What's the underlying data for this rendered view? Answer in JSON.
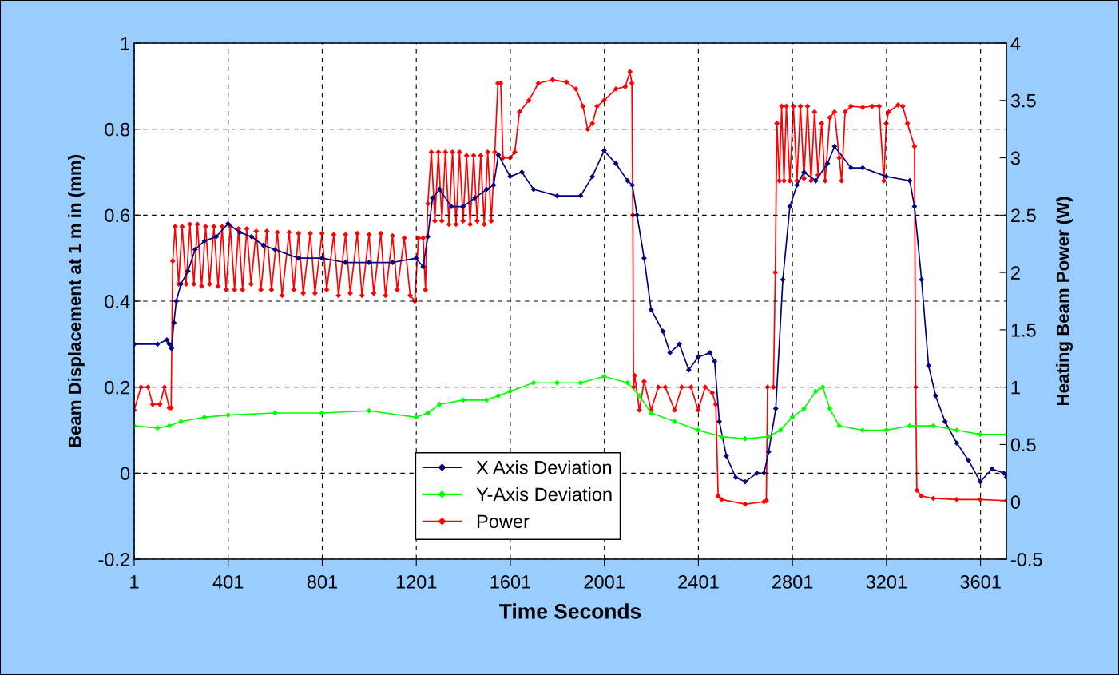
{
  "chart_data": {
    "type": "line",
    "xlabel": "Time Seconds",
    "ylabel": "Beam Displacement at 1 m in (mm)",
    "y2label": "Heating Beam Power (W)",
    "xlim": [
      1,
      3711
    ],
    "xticks": [
      1,
      401,
      801,
      1201,
      1601,
      2001,
      2401,
      2801,
      3201,
      3601
    ],
    "ylim": [
      -0.2,
      1
    ],
    "yticks": [
      -0.2,
      0,
      0.2,
      0.4,
      0.6,
      0.8,
      1
    ],
    "y2lim": [
      -0.5,
      4
    ],
    "y2ticks": [
      -0.5,
      0,
      0.5,
      1,
      1.5,
      2,
      2.5,
      3,
      3.5,
      4
    ],
    "grid": true,
    "legend": "bottom",
    "marker": "diamond",
    "line_style": "solid",
    "series": [
      {
        "name": "X Axis Deviation",
        "color": "#000080",
        "x": [
          1,
          100,
          140,
          150,
          160,
          170,
          180,
          200,
          230,
          260,
          300,
          350,
          400,
          450,
          500,
          550,
          600,
          700,
          800,
          900,
          1000,
          1100,
          1200,
          1230,
          1250,
          1270,
          1300,
          1350,
          1400,
          1450,
          1500,
          1530,
          1550,
          1600,
          1650,
          1700,
          1800,
          1900,
          1950,
          2000,
          2050,
          2100,
          2120,
          2140,
          2170,
          2200,
          2250,
          2280,
          2320,
          2360,
          2400,
          2450,
          2470,
          2490,
          2520,
          2560,
          2600,
          2650,
          2680,
          2700,
          2730,
          2760,
          2790,
          2820,
          2850,
          2900,
          2950,
          2980,
          3050,
          3100,
          3200,
          3300,
          3320,
          3350,
          3380,
          3410,
          3450,
          3500,
          3550,
          3600,
          3650,
          3700,
          3711
        ],
        "values": [
          0.3,
          0.3,
          0.31,
          0.3,
          0.29,
          0.35,
          0.4,
          0.44,
          0.47,
          0.52,
          0.54,
          0.55,
          0.58,
          0.56,
          0.55,
          0.53,
          0.52,
          0.5,
          0.5,
          0.49,
          0.49,
          0.49,
          0.5,
          0.48,
          0.55,
          0.64,
          0.66,
          0.62,
          0.62,
          0.64,
          0.66,
          0.67,
          0.74,
          0.69,
          0.7,
          0.66,
          0.645,
          0.645,
          0.69,
          0.75,
          0.72,
          0.68,
          0.67,
          0.6,
          0.5,
          0.38,
          0.33,
          0.28,
          0.3,
          0.24,
          0.27,
          0.28,
          0.26,
          0.12,
          0.04,
          -0.01,
          -0.02,
          0.0,
          0.0,
          0.05,
          0.15,
          0.45,
          0.62,
          0.67,
          0.7,
          0.68,
          0.72,
          0.76,
          0.71,
          0.71,
          0.69,
          0.68,
          0.62,
          0.45,
          0.25,
          0.18,
          0.12,
          0.07,
          0.03,
          -0.02,
          0.01,
          0.0,
          -0.01
        ]
      },
      {
        "name": "Y-Axis Deviation",
        "color": "#00ff00",
        "x": [
          1,
          100,
          150,
          200,
          300,
          400,
          600,
          800,
          1000,
          1200,
          1250,
          1300,
          1400,
          1500,
          1550,
          1600,
          1700,
          1800,
          1900,
          2000,
          2100,
          2150,
          2200,
          2300,
          2400,
          2500,
          2600,
          2700,
          2750,
          2800,
          2850,
          2900,
          2930,
          2960,
          3000,
          3100,
          3200,
          3300,
          3400,
          3500,
          3600,
          3711
        ],
        "values": [
          0.11,
          0.105,
          0.11,
          0.12,
          0.13,
          0.135,
          0.14,
          0.14,
          0.145,
          0.13,
          0.14,
          0.16,
          0.17,
          0.17,
          0.18,
          0.19,
          0.21,
          0.21,
          0.21,
          0.225,
          0.21,
          0.18,
          0.14,
          0.12,
          0.1,
          0.085,
          0.08,
          0.085,
          0.1,
          0.13,
          0.15,
          0.19,
          0.2,
          0.15,
          0.11,
          0.1,
          0.1,
          0.11,
          0.11,
          0.1,
          0.09,
          0.09
        ]
      },
      {
        "name": "Power",
        "color": "#ff0000",
        "axis": "y2",
        "x": [
          1,
          30,
          60,
          80,
          110,
          130,
          150,
          158,
          165,
          175,
          190,
          205,
          222,
          238,
          255,
          270,
          288,
          305,
          322,
          340,
          358,
          375,
          392,
          410,
          428,
          445,
          462,
          480,
          498,
          520,
          540,
          565,
          585,
          610,
          630,
          660,
          680,
          700,
          720,
          750,
          770,
          800,
          820,
          850,
          870,
          900,
          920,
          950,
          970,
          1000,
          1020,
          1050,
          1070,
          1100,
          1120,
          1150,
          1175,
          1195,
          1210,
          1230,
          1240,
          1250,
          1265,
          1280,
          1295,
          1310,
          1325,
          1340,
          1355,
          1370,
          1385,
          1400,
          1415,
          1430,
          1445,
          1460,
          1475,
          1490,
          1505,
          1520,
          1535,
          1548,
          1560,
          1570,
          1600,
          1620,
          1640,
          1680,
          1720,
          1780,
          1840,
          1880,
          1910,
          1930,
          1950,
          1970,
          2000,
          2050,
          2090,
          2110,
          2118,
          2122,
          2125,
          2130,
          2150,
          2170,
          2200,
          2230,
          2260,
          2300,
          2330,
          2370,
          2400,
          2430,
          2460,
          2475,
          2485,
          2500,
          2600,
          2680,
          2690,
          2695,
          2720,
          2728,
          2735,
          2745,
          2755,
          2765,
          2775,
          2790,
          2805,
          2820,
          2835,
          2850,
          2865,
          2880,
          2895,
          2910,
          2925,
          2940,
          2960,
          2980,
          3000,
          3010,
          3025,
          3050,
          3100,
          3140,
          3170,
          3190,
          3200,
          3210,
          3250,
          3270,
          3290,
          3320,
          3325,
          3330,
          3350,
          3400,
          3500,
          3600,
          3711
        ],
        "values": [
          0.8,
          1.0,
          1.0,
          0.85,
          0.85,
          1.0,
          0.82,
          0.82,
          2.1,
          2.4,
          1.9,
          2.4,
          1.9,
          2.42,
          1.9,
          2.42,
          1.88,
          2.4,
          1.9,
          2.4,
          1.88,
          2.4,
          1.85,
          2.4,
          1.85,
          2.38,
          1.85,
          2.38,
          1.9,
          2.36,
          1.85,
          2.36,
          1.85,
          2.35,
          1.8,
          2.35,
          1.85,
          2.34,
          1.82,
          2.34,
          1.82,
          2.34,
          1.85,
          2.33,
          1.8,
          2.33,
          1.82,
          2.34,
          1.8,
          2.33,
          1.82,
          2.34,
          1.8,
          2.32,
          1.85,
          2.3,
          1.8,
          1.75,
          2.3,
          2.3,
          1.85,
          2.6,
          3.05,
          2.45,
          3.05,
          2.45,
          3.05,
          2.42,
          3.05,
          2.42,
          3.05,
          2.45,
          3.02,
          2.42,
          3.02,
          2.45,
          3.02,
          2.42,
          3.05,
          2.45,
          3.05,
          3.65,
          3.65,
          3.0,
          3.0,
          3.05,
          3.4,
          3.5,
          3.65,
          3.68,
          3.66,
          3.6,
          3.45,
          3.25,
          3.3,
          3.45,
          3.5,
          3.6,
          3.62,
          3.75,
          3.65,
          2.5,
          1.0,
          1.1,
          0.8,
          1.05,
          0.8,
          1.0,
          1.0,
          0.8,
          1.0,
          1.0,
          0.8,
          1.0,
          0.95,
          0.85,
          0.05,
          0.02,
          -0.02,
          0.0,
          0.01,
          1.0,
          1.0,
          2.0,
          3.3,
          2.8,
          3.45,
          2.8,
          3.45,
          2.8,
          3.45,
          2.8,
          3.45,
          2.82,
          3.45,
          2.8,
          3.4,
          2.85,
          3.3,
          2.8,
          3.35,
          3.4,
          3.0,
          2.8,
          3.4,
          3.45,
          3.44,
          3.45,
          3.45,
          2.8,
          3.3,
          3.4,
          3.46,
          3.45,
          3.3,
          3.1,
          1.0,
          0.1,
          0.05,
          0.03,
          0.02,
          0.02,
          0.01
        ]
      }
    ]
  }
}
